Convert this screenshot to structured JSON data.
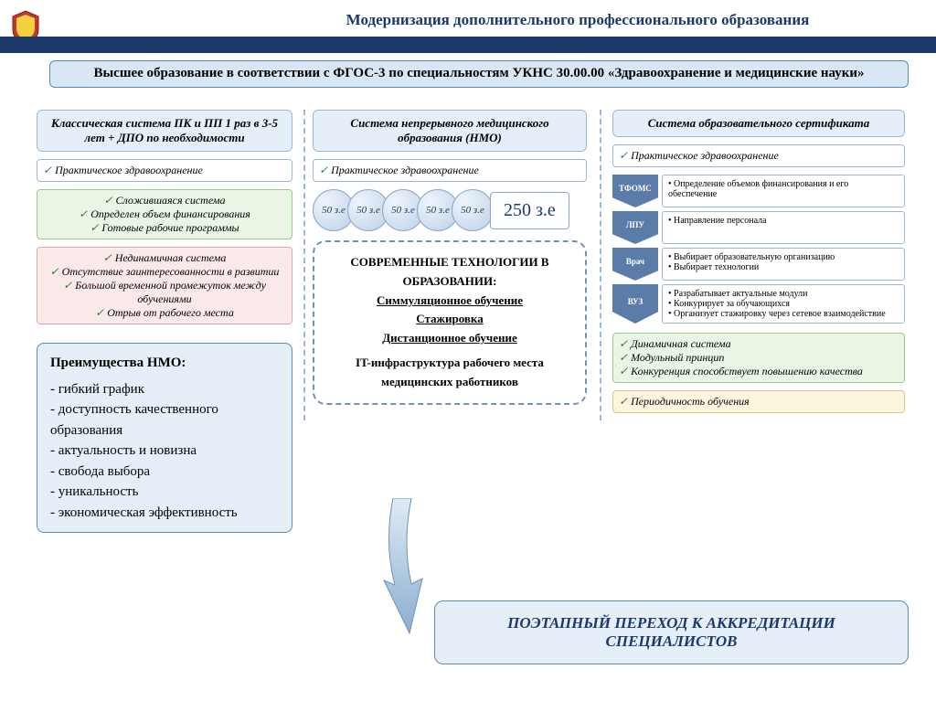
{
  "colors": {
    "primary": "#1b3a6b",
    "light_blue": "#d9e7f5",
    "panel_blue": "#e6eef7",
    "border_blue": "#5b8ab5",
    "green_bg": "#eaf5e6",
    "pink_bg": "#fbe9e9",
    "yellow_bg": "#fdf6df",
    "chevron": "#5b7ba8"
  },
  "title": "Модернизация дополнительного профессионального образования",
  "banner": "Высшее образование в соответствии с ФГОС-3 по специальностям УКНС 30.00.00 «Здравоохранение и медицинские науки»",
  "col1": {
    "header": "Классическая система ПК и ПП 1 раз в 3-5 лет + ДПО по необходимости",
    "practice": "Практическое здравоохранение",
    "green": [
      "Сложившаяся система",
      "Определен объем финансирования",
      "Готовые рабочие программы"
    ],
    "pink": [
      "Нединамичная система",
      "Отсутствие заинтересованности в развитии",
      "Большой временной промежуток между обучениями",
      "Отрыв от рабочего места"
    ]
  },
  "advantages": {
    "header": "Преимущества НМО:",
    "items": [
      "- гибкий график",
      "- доступность качественного образования",
      "- актуальность и новизна",
      "- свобода выбора",
      "- уникальность",
      "- экономическая эффективность"
    ]
  },
  "col2": {
    "header": "Система непрерывного медицинского образования (НМО)",
    "practice": "Практическое здравоохранение",
    "credits": [
      "50 з.е",
      "50 з.е",
      "50 з.е",
      "50 з.е",
      "50 з.е"
    ],
    "credit_total": "250 з.е",
    "tech_title": "СОВРЕМЕННЫЕ ТЕХНОЛОГИИ В ОБРАЗОВАНИИ:",
    "tech_items": [
      "Симмуляционное обучение",
      "Стажировка",
      "Дистанционное обучение"
    ],
    "tech_footer": "IT-инфраструктура рабочего места медицинских работников"
  },
  "col3": {
    "header": "Система образовательного сертификата",
    "practice": "Практическое здравоохранение",
    "chevrons": [
      {
        "label": "ТФОМС",
        "bullets": [
          "Определение объемов финансирования и его обеспечение"
        ]
      },
      {
        "label": "ЛПУ",
        "bullets": [
          "Направление персонала"
        ]
      },
      {
        "label": "Врач",
        "bullets": [
          "Выбирает образовательную организацию",
          "Выбирает технологии"
        ]
      },
      {
        "label": "ВУЗ",
        "bullets": [
          "Разрабатывает актуальные модули",
          "Конкурирует за обучающихся",
          "Организует стажировку через сетевое взаимодействие"
        ]
      }
    ],
    "green": [
      "Динамичная система",
      "Модульный принцип",
      "Конкуренция способствует повышению качества"
    ],
    "yellow": [
      "Периодичность обучения"
    ]
  },
  "final": "ПОЭТАПНЫЙ ПЕРЕХОД К АККРЕДИТАЦИИ СПЕЦИАЛИСТОВ"
}
